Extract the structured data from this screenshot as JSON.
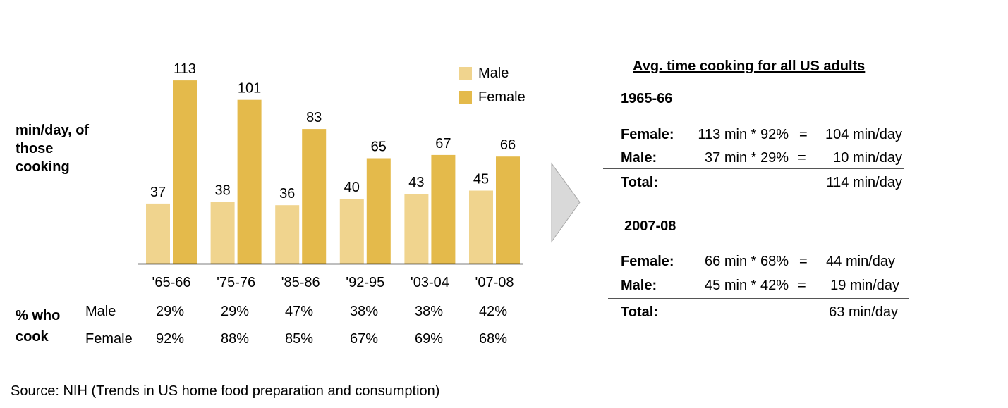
{
  "chart_data": {
    "type": "bar",
    "ylabel": "min/day, of those cooking",
    "categories": [
      "'65-66",
      "'75-76",
      "'85-86",
      "'92-95",
      "'03-04",
      "'07-08"
    ],
    "series": [
      {
        "name": "Male",
        "values": [
          37,
          38,
          36,
          40,
          43,
          45
        ],
        "color": "#F0D48E"
      },
      {
        "name": "Female",
        "values": [
          113,
          101,
          83,
          65,
          67,
          66
        ],
        "color": "#E4BA4B"
      }
    ],
    "legend": "top-right",
    "grid": false
  },
  "ylabel_lines": [
    "min/day, of",
    "those",
    "cooking"
  ],
  "pct_table": {
    "title_lines": [
      "% who",
      "cook"
    ],
    "rows": [
      {
        "label": "Male",
        "values": [
          "29%",
          "29%",
          "47%",
          "38%",
          "38%",
          "42%"
        ]
      },
      {
        "label": "Female",
        "values": [
          "92%",
          "88%",
          "85%",
          "67%",
          "69%",
          "68%"
        ]
      }
    ]
  },
  "source": "Source: NIH (Trends in US home food preparation and consumption)",
  "right": {
    "title": "Avg. time cooking for all US adults",
    "blocks": [
      {
        "year": "1965-66",
        "female": {
          "label": "Female:",
          "calc": "113 min * 92%",
          "eq": "=",
          "result": "104 min/day"
        },
        "male": {
          "label": "Male:",
          "calc": "37 min * 29%",
          "eq": "=",
          "result": "10 min/day"
        },
        "total": {
          "label": "Total:",
          "result": "114 min/day"
        }
      },
      {
        "year": "2007-08",
        "female": {
          "label": "Female:",
          "calc": "66 min * 68%",
          "eq": "=",
          "result": "44 min/day"
        },
        "male": {
          "label": "Male:",
          "calc": "45 min * 42%",
          "eq": "=",
          "result": "19 min/day"
        },
        "total": {
          "label": "Total:",
          "result": "63 min/day"
        }
      }
    ]
  },
  "arrow": {
    "color": "#D9D9D9",
    "icon": "chevron-right-arrow-icon"
  }
}
